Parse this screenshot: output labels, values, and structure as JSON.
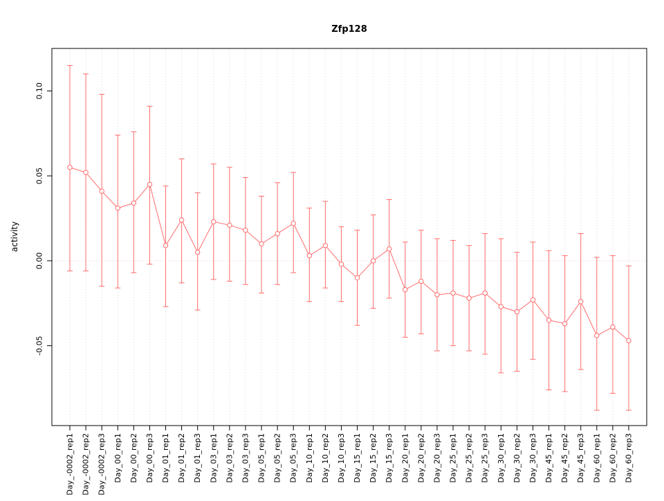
{
  "chart_data": {
    "type": "line",
    "title": "Zfp128",
    "ylabel": "activity",
    "xlabel": "",
    "point_style": "open-circle",
    "error_bars": true,
    "grid": "vertical dotted lines at each category, dotted horizontal line at zero",
    "legend": "none",
    "ylim": [
      -0.097,
      0.125
    ],
    "yticks": [
      -0.05,
      0.0,
      0.05,
      0.1
    ],
    "ytick_labels": [
      "-0.05",
      "0.00",
      "0.05",
      "0.10"
    ],
    "colors": {
      "series": "#ff6b6b",
      "grid": "#d9d9d9",
      "zero_line": "#f2bcbc",
      "box": "#000000",
      "text": "#000000",
      "point_fill": "#ffffff"
    },
    "categories": [
      "Day_-0002_rep1",
      "Day_-0002_rep2",
      "Day_-0002_rep3",
      "Day_00_rep1",
      "Day_00_rep2",
      "Day_00_rep3",
      "Day_01_rep1",
      "Day_01_rep2",
      "Day_01_rep3",
      "Day_03_rep1",
      "Day_03_rep2",
      "Day_03_rep3",
      "Day_05_rep1",
      "Day_05_rep2",
      "Day_05_rep3",
      "Day_10_rep1",
      "Day_10_rep2",
      "Day_10_rep3",
      "Day_15_rep1",
      "Day_15_rep2",
      "Day_15_rep3",
      "Day_20_rep1",
      "Day_20_rep2",
      "Day_20_rep3",
      "Day_25_rep1",
      "Day_25_rep2",
      "Day_25_rep3",
      "Day_30_rep1",
      "Day_30_rep2",
      "Day_30_rep3",
      "Day_45_rep1",
      "Day_45_rep2",
      "Day_45_rep3",
      "Day_60_rep1",
      "Day_60_rep2",
      "Day_60_rep3"
    ],
    "series": [
      {
        "name": "activity",
        "values": [
          0.055,
          0.052,
          0.041,
          0.031,
          0.034,
          0.045,
          0.009,
          0.024,
          0.005,
          0.023,
          0.021,
          0.018,
          0.01,
          0.016,
          0.022,
          0.003,
          0.009,
          -0.002,
          -0.01,
          0.0,
          0.007,
          -0.017,
          -0.012,
          -0.02,
          -0.019,
          -0.022,
          -0.019,
          -0.027,
          -0.03,
          -0.023,
          -0.035,
          -0.037,
          -0.024,
          -0.044,
          -0.039,
          -0.047
        ],
        "upper": [
          0.115,
          0.11,
          0.098,
          0.074,
          0.076,
          0.091,
          0.044,
          0.06,
          0.04,
          0.057,
          0.055,
          0.049,
          0.038,
          0.046,
          0.052,
          0.031,
          0.035,
          0.02,
          0.018,
          0.027,
          0.036,
          0.011,
          0.018,
          0.013,
          0.012,
          0.009,
          0.016,
          0.013,
          0.005,
          0.011,
          0.006,
          0.003,
          0.016,
          0.002,
          0.003,
          -0.003
        ],
        "lower": [
          -0.006,
          -0.006,
          -0.015,
          -0.016,
          -0.007,
          -0.002,
          -0.027,
          -0.013,
          -0.029,
          -0.011,
          -0.012,
          -0.014,
          -0.019,
          -0.014,
          -0.007,
          -0.024,
          -0.016,
          -0.024,
          -0.038,
          -0.028,
          -0.022,
          -0.045,
          -0.043,
          -0.053,
          -0.05,
          -0.053,
          -0.055,
          -0.066,
          -0.065,
          -0.058,
          -0.076,
          -0.077,
          -0.064,
          -0.088,
          -0.078,
          -0.088
        ]
      }
    ]
  }
}
